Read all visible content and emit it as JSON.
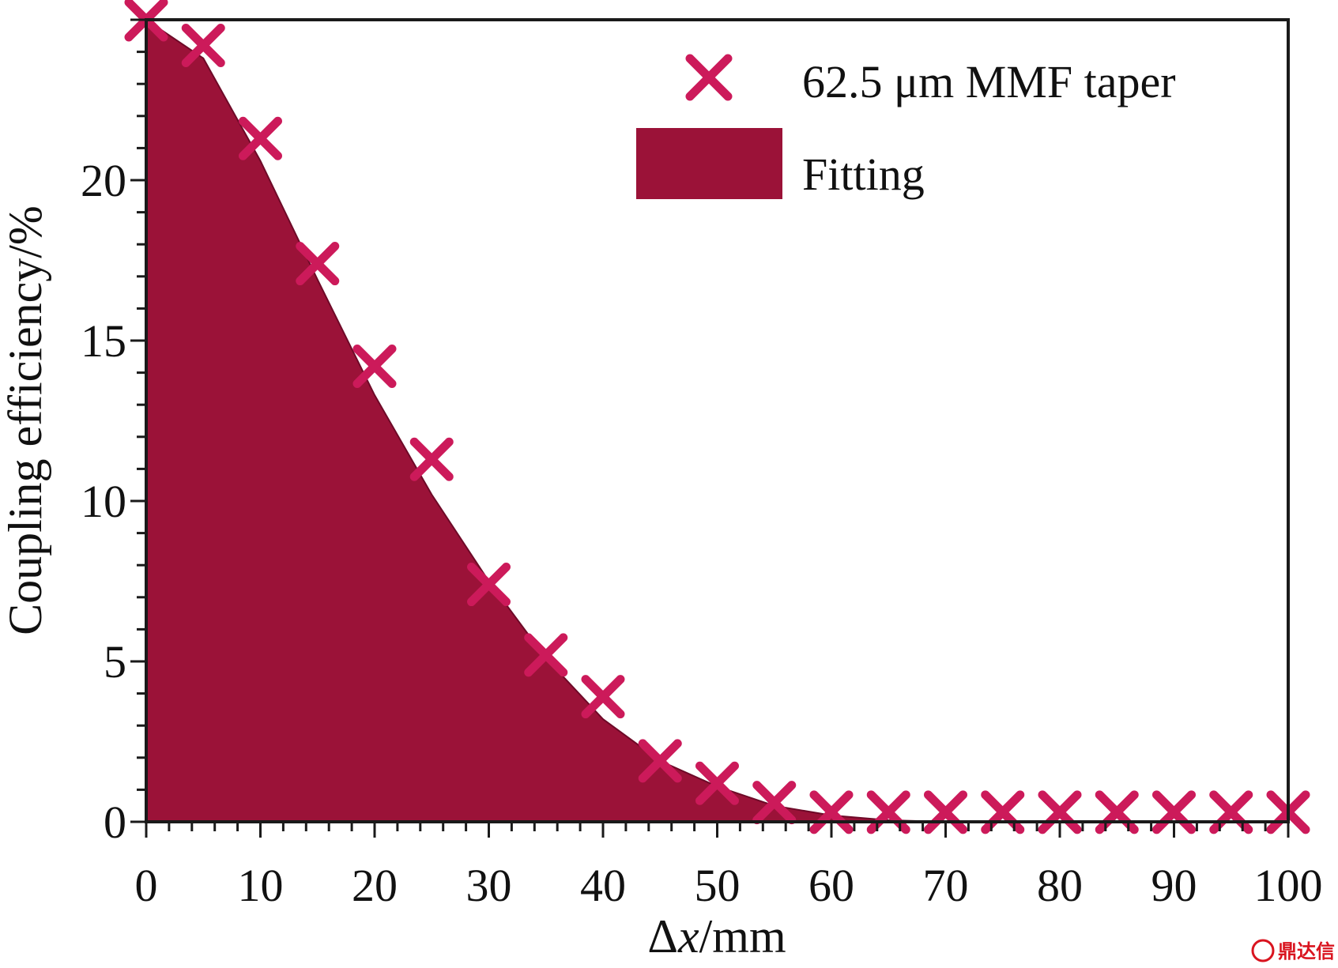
{
  "chart_data": {
    "type": "area",
    "xlabel_symbol": "Δ",
    "xlabel_var": "x",
    "xlabel_unit": "/mm",
    "ylabel": "Coupling efficiency/%",
    "xlim": [
      0,
      100
    ],
    "ylim": [
      0,
      25
    ],
    "x_ticks": [
      0,
      10,
      20,
      30,
      40,
      50,
      60,
      70,
      80,
      90,
      100
    ],
    "y_ticks": [
      0,
      5,
      10,
      15,
      20
    ],
    "x_tick_labels": [
      "0",
      "10",
      "20",
      "30",
      "40",
      "50",
      "60",
      "70",
      "80",
      "90",
      "100"
    ],
    "y_tick_labels": [
      "0",
      "5",
      "10",
      "15",
      "20"
    ],
    "legend_position": "top-right",
    "series": [
      {
        "name": "62.5 μm MMF taper",
        "style": "marker-x",
        "color": "#cc1a5a",
        "x": [
          0,
          5,
          10,
          15,
          20,
          25,
          30,
          35,
          40,
          45,
          50,
          55,
          60,
          65,
          70,
          75,
          80,
          85,
          90,
          95,
          100
        ],
        "y": [
          25,
          24.2,
          21.3,
          17.4,
          14.2,
          11.3,
          7.4,
          5.2,
          3.9,
          1.9,
          1.2,
          0.6,
          0.3,
          0.3,
          0.3,
          0.3,
          0.3,
          0.3,
          0.3,
          0.3,
          0.3
        ]
      },
      {
        "name": "Fitting",
        "style": "filled-area",
        "color": "#9b1238",
        "x": [
          0,
          5,
          10,
          15,
          20,
          25,
          30,
          35,
          40,
          45,
          50,
          55,
          60,
          65,
          70,
          75,
          80,
          85,
          90,
          95,
          100
        ],
        "y": [
          25,
          23.8,
          20.6,
          16.9,
          13.3,
          10.2,
          7.5,
          5.1,
          3.2,
          1.9,
          1.1,
          0.5,
          0.2,
          0.05,
          0,
          0,
          0,
          0,
          0,
          0,
          0
        ]
      }
    ]
  },
  "watermark": "鼎达信"
}
